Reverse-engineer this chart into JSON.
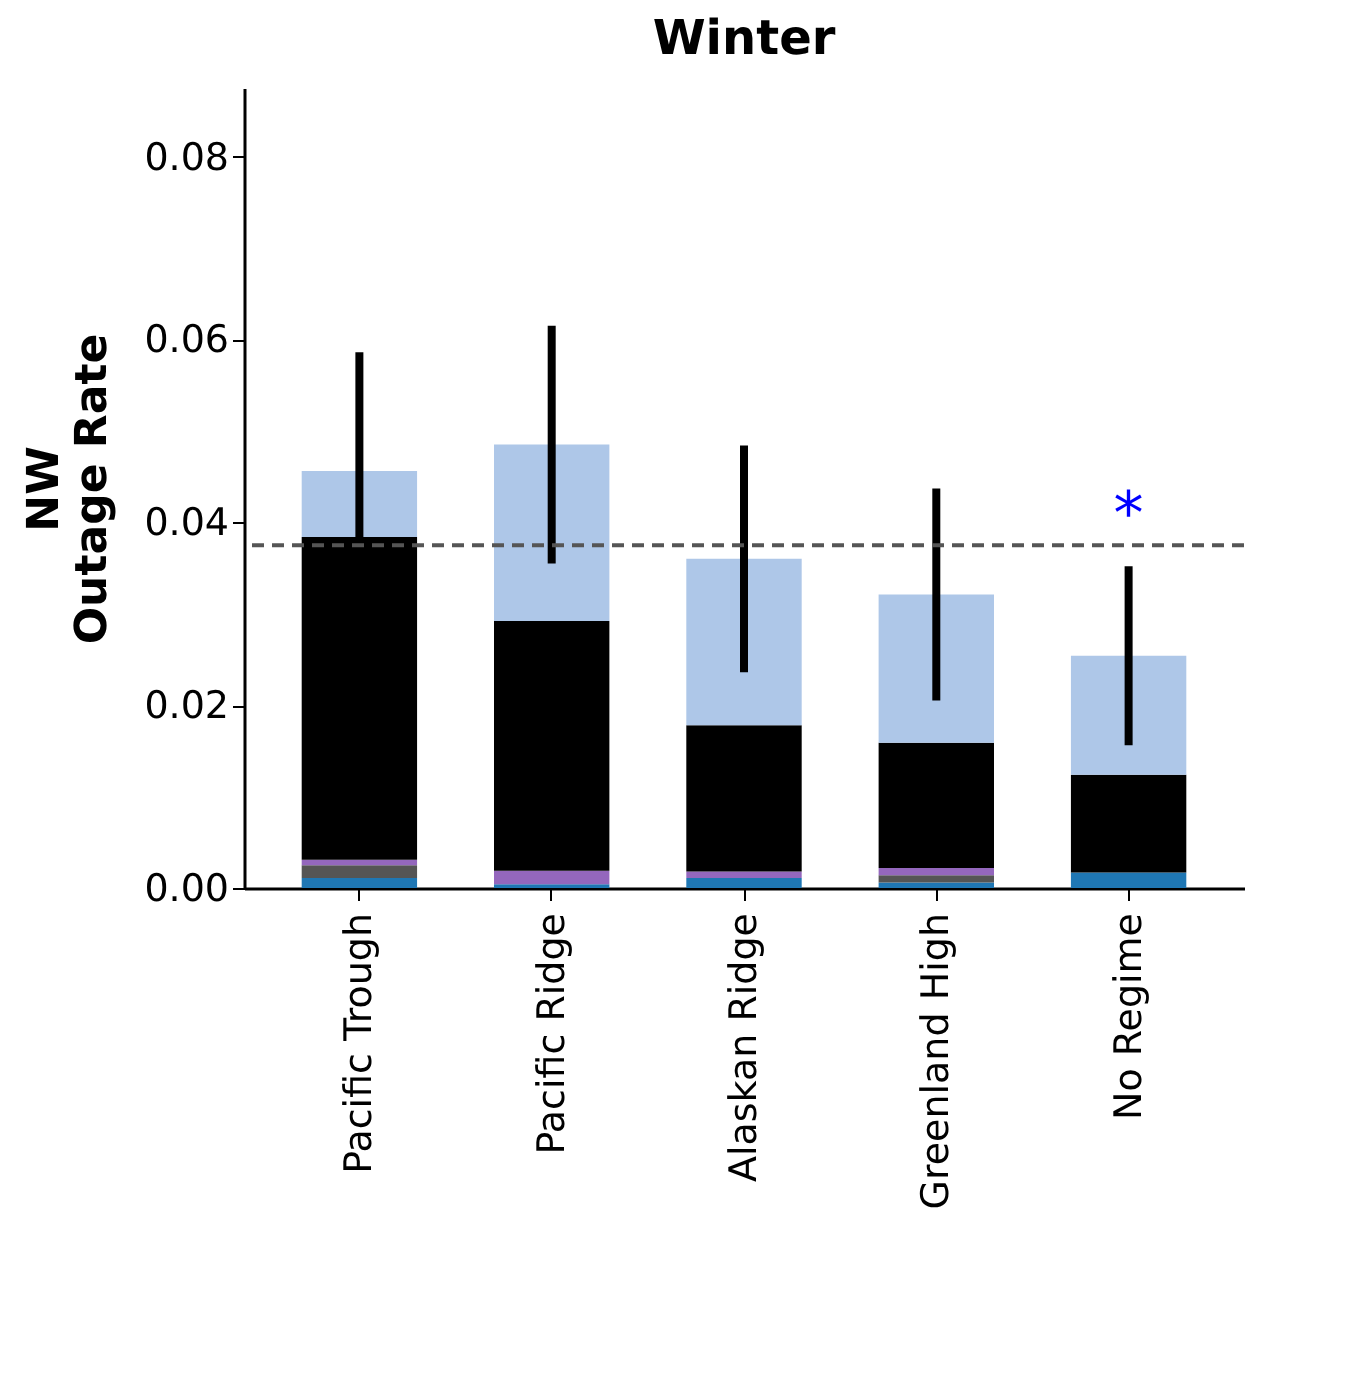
{
  "chart_data": {
    "type": "bar",
    "title": "Winter",
    "ylabel": "NW\nOutage Rate",
    "categories": [
      "Pacific Trough",
      "Pacific Ridge",
      "Alaskan Ridge",
      "Greenland High",
      "No Regime"
    ],
    "stacked": true,
    "series": [
      {
        "color": "#1f77b4",
        "values": [
          0.0011,
          0.0004,
          0.0011,
          0.0006,
          0.0017
        ]
      },
      {
        "color": "#555555",
        "values": [
          0.0014,
          0,
          0,
          0.0008,
          0
        ]
      },
      {
        "color": "#9467bd",
        "values": [
          0.0006,
          0.0015,
          0.0007,
          0.0008,
          0
        ]
      },
      {
        "color": "#000000",
        "values": [
          0.0353,
          0.0273,
          0.016,
          0.0137,
          0.0107
        ]
      },
      {
        "color": "#aec7e8",
        "values": [
          0.0072,
          0.0193,
          0.0182,
          0.0162,
          0.013
        ],
        "errors": [
          0.013,
          0.013,
          0.0124,
          0.0116,
          0.0098
        ]
      }
    ],
    "ylim": [
      0,
      0.0875
    ],
    "yticks": [
      {
        "value": 0,
        "label": "0.00"
      },
      {
        "value": 0.02,
        "label": "0.02"
      },
      {
        "value": 0.04,
        "label": "0.04"
      },
      {
        "value": 0.06,
        "label": "0.06"
      },
      {
        "value": 0.08,
        "label": "0.08"
      }
    ],
    "ref_lines": [
      {
        "axis": "y",
        "value": 0.0375,
        "color": "#555555",
        "line_style": "dashed"
      }
    ],
    "annotations": [
      "*"
    ],
    "grid": false,
    "legend": false
  }
}
